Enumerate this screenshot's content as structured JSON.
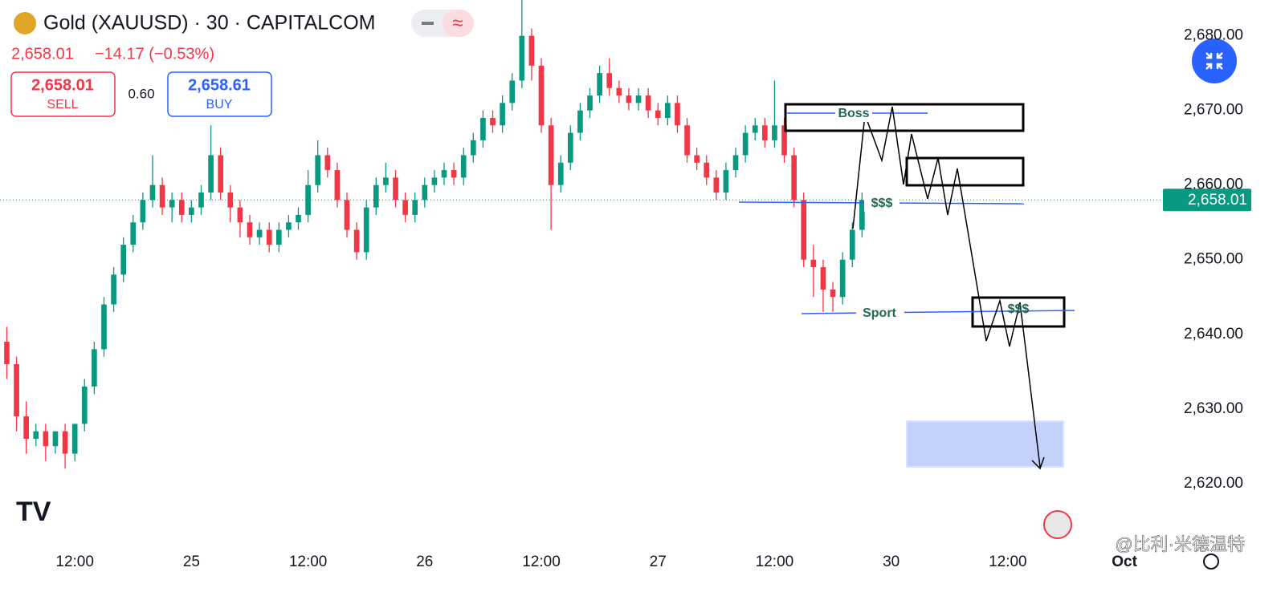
{
  "header": {
    "title": "Gold (XAUUSD) · 30 · CAPITALCOM",
    "price": "2,658.01",
    "change": "−14.17 (−0.53%)",
    "sell_price": "2,658.01",
    "sell_label": "SELL",
    "spread": "0.60",
    "buy_price": "2,658.61",
    "buy_label": "BUY"
  },
  "annotations": {
    "boss": "Boss",
    "liquidity_top": "$$$",
    "sport": "Sport",
    "liquidity_bottom": "$$$"
  },
  "watermark": "@比利·米德温特",
  "chart_data": {
    "type": "candlestick",
    "up_color": "#089981",
    "down_color": "#f23645",
    "xlim": [
      4.3,
      123.3
    ],
    "ylim": [
      2611.7,
      2684.8
    ],
    "xticks": [
      {
        "value": 12,
        "label": "12:00"
      },
      {
        "value": 24,
        "label": "25"
      },
      {
        "value": 36,
        "label": "12:00"
      },
      {
        "value": 48,
        "label": "26"
      },
      {
        "value": 60,
        "label": "12:00"
      },
      {
        "value": 72,
        "label": "27"
      },
      {
        "value": 84,
        "label": "12:00"
      },
      {
        "value": 96,
        "label": "30"
      },
      {
        "value": 108,
        "label": "12:00"
      },
      {
        "value": 120,
        "label": "Oct"
      }
    ],
    "yticks": [
      {
        "value": 2680,
        "label": "2,680.00"
      },
      {
        "value": 2670,
        "label": "2,670.00"
      },
      {
        "value": 2660,
        "label": "2,660.00"
      },
      {
        "value": 2650,
        "label": "2,650.00"
      },
      {
        "value": 2640,
        "label": "2,640.00"
      },
      {
        "value": 2630,
        "label": "2,630.00"
      },
      {
        "value": 2620,
        "label": "2,620.00"
      }
    ],
    "last_price": {
      "value": 2658.01,
      "label": "2,658.01"
    },
    "x": [
      5,
      6,
      7,
      8,
      9,
      10,
      11,
      12,
      13,
      14,
      15,
      16,
      17,
      18,
      19,
      20,
      21,
      22,
      23,
      24,
      25,
      26,
      27,
      28,
      29,
      30,
      31,
      32,
      33,
      34,
      35,
      36,
      37,
      38,
      39,
      40,
      41,
      42,
      43,
      44,
      45,
      46,
      47,
      48,
      49,
      50,
      51,
      52,
      53,
      54,
      55,
      56,
      57,
      58,
      59,
      60,
      61,
      62,
      63,
      64,
      65,
      66,
      67,
      68,
      69,
      70,
      71,
      72,
      73,
      74,
      75,
      76,
      77,
      78,
      79,
      80,
      81,
      82,
      83,
      84,
      85,
      86,
      87,
      88,
      89,
      90,
      91,
      92,
      93
    ],
    "open": [
      2639,
      2636,
      2629,
      2626,
      2627,
      2625,
      2627,
      2624,
      2628,
      2633,
      2638,
      2644,
      2648,
      2652,
      2655,
      2658,
      2660,
      2657,
      2658,
      2656,
      2657,
      2659,
      2664,
      2659,
      2657,
      2655,
      2653,
      2654,
      2652,
      2654,
      2655,
      2656,
      2660,
      2664,
      2662,
      2658,
      2654,
      2651,
      2657,
      2660,
      2661,
      2658,
      2656,
      2658,
      2660,
      2661,
      2662,
      2661,
      2664,
      2666,
      2669,
      2668,
      2671,
      2674,
      2680,
      2676,
      2668,
      2660,
      2663,
      2667,
      2670,
      2672,
      2675,
      2673,
      2672,
      2671,
      2672,
      2670,
      2669,
      2671,
      2668,
      2664,
      2663,
      2661,
      2659,
      2662,
      2664,
      2667,
      2668,
      2666,
      2668,
      2664,
      2658,
      2650,
      2649,
      2646,
      2645,
      2650,
      2654
    ],
    "high": [
      2641,
      2637,
      2631,
      2628,
      2628,
      2627,
      2628,
      2628,
      2634,
      2639,
      2645,
      2649,
      2653,
      2656,
      2659,
      2664,
      2661,
      2659,
      2659,
      2658,
      2660,
      2668,
      2665,
      2660,
      2658,
      2656,
      2655,
      2655,
      2655,
      2656,
      2657,
      2662,
      2666,
      2665,
      2663,
      2659,
      2655,
      2658,
      2661,
      2663,
      2662,
      2659,
      2659,
      2661,
      2662,
      2663,
      2663,
      2665,
      2667,
      2670,
      2670,
      2672,
      2675,
      2685,
      2681,
      2677,
      2669,
      2664,
      2668,
      2671,
      2673,
      2676,
      2677,
      2674,
      2673,
      2673,
      2673,
      2671,
      2672,
      2672,
      2669,
      2665,
      2664,
      2662,
      2663,
      2665,
      2668,
      2669,
      2669,
      2674,
      2669,
      2665,
      2659,
      2652,
      2650,
      2647,
      2651,
      2655,
      2659
    ],
    "low": [
      2634,
      2627,
      2624,
      2625,
      2623,
      2624,
      2622,
      2623,
      2627,
      2632,
      2637,
      2643,
      2647,
      2651,
      2654,
      2657,
      2656,
      2655,
      2655,
      2655,
      2656,
      2658,
      2658,
      2655,
      2653,
      2652,
      2652,
      2651,
      2651,
      2653,
      2654,
      2655,
      2659,
      2661,
      2657,
      2653,
      2650,
      2650,
      2656,
      2659,
      2657,
      2655,
      2655,
      2657,
      2659,
      2660,
      2660,
      2660,
      2663,
      2665,
      2667,
      2667,
      2670,
      2673,
      2674,
      2667,
      2654,
      2659,
      2662,
      2666,
      2669,
      2671,
      2672,
      2671,
      2670,
      2670,
      2669,
      2668,
      2668,
      2667,
      2663,
      2662,
      2660,
      2658,
      2658,
      2661,
      2663,
      2666,
      2665,
      2665,
      2663,
      2657,
      2649,
      2645,
      2643,
      2643,
      2644,
      2649,
      2653
    ],
    "close": [
      2636,
      2629,
      2626,
      2627,
      2625,
      2627,
      2624,
      2628,
      2633,
      2638,
      2644,
      2648,
      2652,
      2655,
      2658,
      2660,
      2657,
      2658,
      2656,
      2657,
      2659,
      2664,
      2659,
      2657,
      2655,
      2653,
      2654,
      2652,
      2654,
      2655,
      2656,
      2660,
      2664,
      2662,
      2658,
      2654,
      2651,
      2657,
      2660,
      2661,
      2658,
      2656,
      2658,
      2660,
      2661,
      2662,
      2661,
      2664,
      2666,
      2669,
      2668,
      2671,
      2674,
      2680,
      2676,
      2668,
      2660,
      2663,
      2667,
      2670,
      2672,
      2675,
      2673,
      2672,
      2671,
      2672,
      2670,
      2669,
      2671,
      2668,
      2664,
      2663,
      2661,
      2659,
      2662,
      2664,
      2667,
      2668,
      2666,
      2668,
      2664,
      2658,
      2650,
      2649,
      2646,
      2645,
      2650,
      2654,
      2658.01
    ]
  }
}
